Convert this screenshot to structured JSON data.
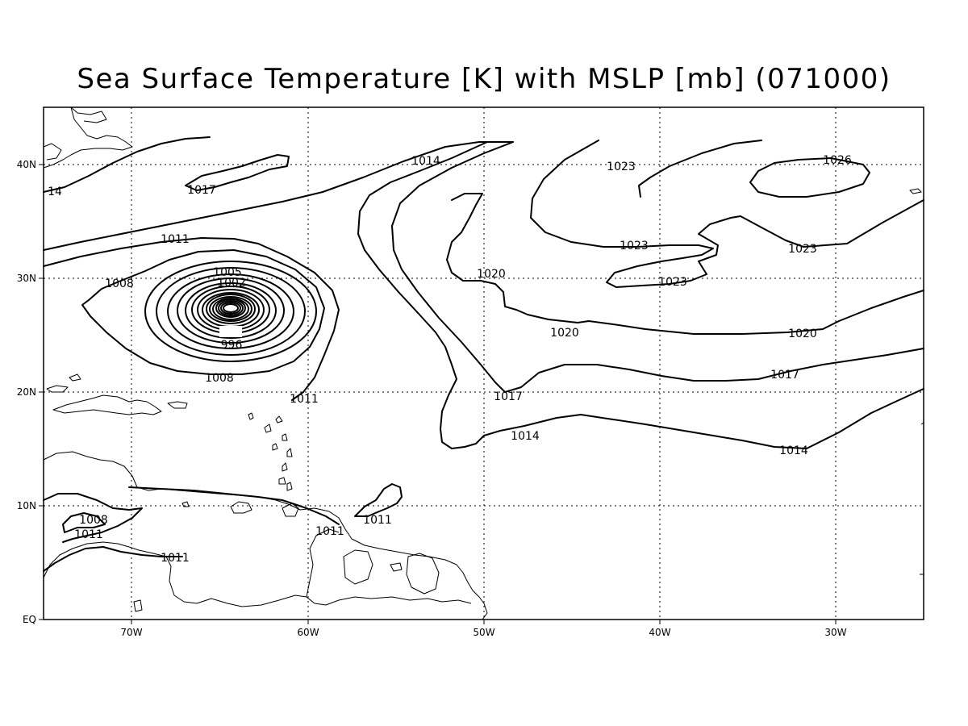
{
  "title": "Sea Surface Temperature [K] with MSLP [mb] (071000)",
  "lon_ticks": [
    "70W",
    "60W",
    "50W",
    "40W",
    "30W"
  ],
  "lat_ticks": [
    "40N",
    "30N",
    "20N",
    "10N",
    "EQ"
  ],
  "contour_labels": {
    "c14_nw": "14",
    "c1017_nw": "1017",
    "c1014_n": "1014",
    "c1023_n": "1023",
    "c1026": "1026",
    "c1011_w": "1011",
    "c1008_w": "1008",
    "c1005": "1005",
    "c1002": "1002",
    "c996": "996",
    "c1008_s": "1008",
    "c1020_c": "1020",
    "c1023_c1": "1023",
    "c1023_c2": "1023",
    "c1023_e": "1023",
    "c1020_s": "1020",
    "c1020_e": "1020",
    "c1017_c": "1017",
    "c1017_e": "1017",
    "c1014_c": "1014",
    "c1014_e": "1014",
    "c1011_ant": "1011",
    "c1011_c": "1011",
    "c1011_car": "1011",
    "c1008_sa": "1008",
    "c1011_sa1": "1011",
    "c1011_sa2": "1011"
  }
}
